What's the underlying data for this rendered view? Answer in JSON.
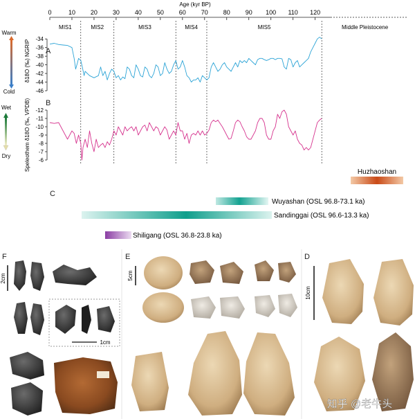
{
  "chart_data": [
    {
      "type": "line",
      "panel": "A",
      "xlabel": "Age (kyr BP)",
      "xlim": [
        0,
        127
      ],
      "x_ticks": [
        0,
        10,
        20,
        30,
        40,
        50,
        60,
        70,
        80,
        90,
        100,
        110,
        120
      ],
      "ylabel": "δ18O (‰) NGRIP",
      "ylim": [
        -46,
        -33
      ],
      "y_ticks": [
        -34,
        -36,
        -38,
        -40,
        -42,
        -44,
        -46
      ],
      "y_inverted": false,
      "climate_scale": {
        "top": "Warm",
        "bottom": "Cold"
      },
      "color": "#2aa3d6",
      "x": [
        0,
        2,
        4,
        6,
        8,
        10,
        11,
        11.7,
        12.5,
        13,
        14,
        14.7,
        15.5,
        16,
        18,
        20,
        22,
        23,
        24,
        25,
        26,
        27,
        28,
        29,
        30,
        31,
        32,
        33,
        34,
        35,
        36,
        37,
        38,
        39,
        40,
        41,
        42,
        43,
        44,
        45,
        46,
        47,
        48,
        49,
        50,
        51,
        52,
        53,
        54,
        55,
        56,
        57,
        58,
        59,
        60,
        61,
        62,
        63,
        64,
        65,
        66,
        67,
        68,
        69,
        70,
        71,
        72,
        73,
        74,
        75,
        76,
        77,
        78,
        79,
        80,
        81,
        82,
        83,
        84,
        85,
        86,
        87,
        88,
        89,
        90,
        91,
        92,
        93,
        94,
        95,
        96,
        97,
        98,
        99,
        100,
        101,
        102,
        103,
        104,
        105,
        106,
        107,
        108,
        109,
        110,
        111,
        112,
        113,
        114,
        115,
        116,
        117,
        118,
        119,
        120,
        121,
        122,
        123
      ],
      "y": [
        -35.2,
        -35.0,
        -35.3,
        -35.4,
        -35.5,
        -36.0,
        -38.5,
        -41.0,
        -39.5,
        -38.5,
        -39.0,
        -40.5,
        -42.5,
        -41.5,
        -42.5,
        -43.0,
        -42.5,
        -40.5,
        -42.5,
        -41.5,
        -43.5,
        -42.0,
        -41.0,
        -41.5,
        -43.0,
        -42.5,
        -43.5,
        -42.8,
        -43.2,
        -40.5,
        -41.0,
        -42.5,
        -43.0,
        -40.0,
        -41.0,
        -42.5,
        -42.8,
        -40.5,
        -41.0,
        -42.5,
        -43.0,
        -42.0,
        -40.0,
        -40.5,
        -42.5,
        -42.0,
        -39.5,
        -41.0,
        -42.0,
        -41.5,
        -40.0,
        -39.0,
        -41.0,
        -40.5,
        -39.0,
        -40.5,
        -42.5,
        -43.0,
        -44.0,
        -43.5,
        -43.5,
        -43.0,
        -44.0,
        -42.5,
        -43.0,
        -43.5,
        -43.0,
        -40.5,
        -39.5,
        -40.5,
        -41.5,
        -41.0,
        -40.0,
        -39.5,
        -40.5,
        -41.0,
        -41.5,
        -40.5,
        -39.5,
        -40.5,
        -39.0,
        -39.5,
        -39.0,
        -39.5,
        -38.5,
        -39.0,
        -39.5,
        -40.0,
        -38.8,
        -38.5,
        -38.5,
        -38.8,
        -39.0,
        -38.8,
        -38.5,
        -38.5,
        -38.8,
        -38.5,
        -38.5,
        -38.6,
        -40.5,
        -41.0,
        -38.5,
        -38.8,
        -40.5,
        -39.5,
        -39.0,
        -40.5,
        -40.0,
        -39.5,
        -39.0,
        -38.5,
        -37.0,
        -36.0,
        -35.0,
        -34.0,
        -33.6,
        -34.0
      ]
    },
    {
      "type": "line",
      "panel": "B",
      "ylabel": "Speleothem δ18O (‰, VPDB)",
      "ylim": [
        -12.5,
        -5.5
      ],
      "y_ticks": [
        -12,
        -11,
        -10,
        -9,
        -8,
        -7,
        -6
      ],
      "y_inverted": true,
      "climate_scale": {
        "top": "Wet",
        "bottom": "Dry"
      },
      "color": "#d6338e",
      "x": [
        0,
        2,
        4,
        5,
        6,
        7,
        8,
        9,
        10,
        11,
        12,
        13,
        14,
        14.5,
        15,
        16,
        17,
        18,
        19,
        20,
        21,
        22,
        23,
        24,
        25,
        26,
        27,
        28,
        29,
        30,
        31,
        32,
        33,
        34,
        35,
        36,
        37,
        38,
        39,
        40,
        41,
        42,
        43,
        44,
        45,
        46,
        47,
        48,
        49,
        50,
        51,
        52,
        53,
        54,
        55,
        56,
        57,
        58,
        59,
        60,
        61,
        62,
        63,
        64,
        65,
        66,
        67,
        68,
        69,
        70,
        71,
        72,
        73,
        74,
        75,
        76,
        77,
        78,
        79,
        80,
        81,
        82,
        83,
        84,
        85,
        86,
        87,
        88,
        89,
        90,
        91,
        92,
        93,
        94,
        95,
        96,
        97,
        98,
        99,
        100,
        101,
        102,
        103,
        104,
        105,
        106,
        107,
        108,
        109,
        110,
        111,
        112,
        113,
        114,
        115,
        116,
        117,
        118,
        119,
        120,
        121,
        122,
        123
      ],
      "y": [
        -10.5,
        -10.4,
        -10.5,
        -10.0,
        -9.5,
        -9.0,
        -8.5,
        -9.0,
        -9.5,
        -9.2,
        -8.0,
        -9.0,
        -8.0,
        -6.0,
        -7.5,
        -8.5,
        -7.5,
        -9.5,
        -8.0,
        -7.0,
        -8.5,
        -7.5,
        -7.8,
        -8.0,
        -7.5,
        -8.2,
        -7.8,
        -8.5,
        -9.5,
        -9.0,
        -10.0,
        -9.5,
        -9.0,
        -10.0,
        -9.5,
        -9.8,
        -10.0,
        -9.5,
        -10.0,
        -9.0,
        -9.5,
        -10.0,
        -10.2,
        -9.5,
        -10.5,
        -10.0,
        -9.5,
        -10.0,
        -9.8,
        -9.0,
        -9.5,
        -10.0,
        -9.6,
        -8.5,
        -9.0,
        -9.5,
        -9.0,
        -10.5,
        -9.5,
        -9.5,
        -8.5,
        -9.2,
        -8.0,
        -9.0,
        -9.2,
        -9.0,
        -9.5,
        -9.0,
        -9.5,
        -9.0,
        -9.2,
        -9.6,
        -10.5,
        -10.8,
        -10.6,
        -10.8,
        -10.4,
        -10.0,
        -9.5,
        -9.0,
        -8.5,
        -8.6,
        -9.5,
        -10.5,
        -10.8,
        -10.6,
        -10.0,
        -9.5,
        -8.8,
        -8.5,
        -8.5,
        -9.0,
        -9.5,
        -10.5,
        -11.0,
        -11.0,
        -10.5,
        -9.0,
        -8.5,
        -8.5,
        -9.5,
        -10.0,
        -11.5,
        -11.0,
        -11.8,
        -12.0,
        -11.5,
        -10.0,
        -9.5,
        -9.0,
        -9.5,
        -8.5,
        -8.0,
        -7.8,
        -7.2,
        -7.5,
        -7.2,
        -7.5,
        -8.5,
        -9.5,
        -10.5,
        -10.8,
        -11.0
      ]
    },
    {
      "type": "range",
      "panel": "C",
      "items": [
        {
          "label": "Huzhaoshan",
          "start": 120,
          "end": 137,
          "peak": 129,
          "color": "#d04e1a"
        },
        {
          "label": "Wuyashan (OSL 96.8-73.1 ka)",
          "start": 73.1,
          "end": 96.8,
          "peak": 83,
          "color": "#1aa59a"
        },
        {
          "label": "Sandinggai (OSL 96.6-13.3 ka)",
          "start": 13.3,
          "end": 96.6,
          "peak": 60,
          "color": "#1aa59a"
        },
        {
          "label": "Shiligang (OSL 36.8-23.8 ka)",
          "start": 23.8,
          "end": 36.8,
          "peak": 24,
          "color": "#7d3a9a"
        }
      ]
    }
  ],
  "mis_stages": [
    {
      "label": "MIS1",
      "start": 0,
      "end": 14
    },
    {
      "label": "MIS2",
      "start": 14,
      "end": 29
    },
    {
      "label": "MIS3",
      "start": 29,
      "end": 57
    },
    {
      "label": "MIS4",
      "start": 57,
      "end": 71
    },
    {
      "label": "MIS5",
      "start": 71,
      "end": 123
    },
    {
      "label": "Middle Pleistocene",
      "start": 123,
      "end": 160
    }
  ],
  "panel_labels": {
    "A": "A",
    "B": "B",
    "C": "C",
    "D": "D",
    "E": "E",
    "F": "F"
  },
  "scale_bars": {
    "F_2cm": "2cm",
    "F_1cm": "1cm",
    "E_5cm": "5cm",
    "D_10cm": "10cm"
  },
  "watermark": "知乎 @老牛头",
  "artifact_colors": {
    "dark_stone": "#3a3a3a",
    "black_stone": "#1e1e1e",
    "pebble": "#d9b27a",
    "flake": "#a8958a",
    "light_flake": "#d8d3c9",
    "handaxe_beige": "#d8bf95",
    "handaxe_dark": "#b49468",
    "rusty_cobble": "#8a4a20"
  }
}
